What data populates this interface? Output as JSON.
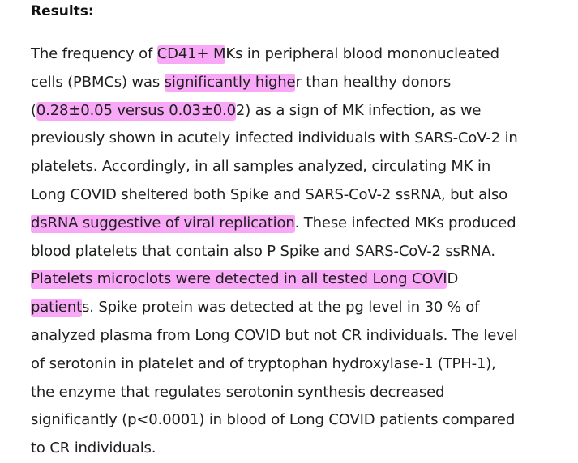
{
  "heading": "Results:",
  "highlight_color": "#f9a8f7",
  "lines": [
    [
      {
        "text": "The frequency of "
      },
      {
        "text": "CD41+ M",
        "hl": true
      },
      {
        "text": "Ks in peripheral blood mononucleated"
      }
    ],
    [
      {
        "text": "cells (PBMCs) was "
      },
      {
        "text": "significantly highe",
        "hl": true
      },
      {
        "text": "r than healthy donors"
      }
    ],
    [
      {
        "text": "("
      },
      {
        "text": "0.28±0.05 versus 0.03±0.0",
        "hl": true
      },
      {
        "text": "2) as a sign of MK infection, as we"
      }
    ],
    [
      {
        "text": "previously shown in acutely infected individuals with SARS-CoV-2 in"
      }
    ],
    [
      {
        "text": "platelets. Accordingly, in all samples analyzed, circulating MK in"
      }
    ],
    [
      {
        "text": "Long COVID sheltered both Spike and SARS-CoV-2 ssRNA, but also"
      }
    ],
    [
      {
        "text": "dsRNA suggestive of viral replication",
        "hl": true
      },
      {
        "text": ". These infected MKs produced"
      }
    ],
    [
      {
        "text": "blood platelets that contain also P Spike and SARS-CoV-2 ssRNA."
      }
    ],
    [
      {
        "text": "Platelets microclots were detected in all tested Long COVI",
        "hl": true
      },
      {
        "text": "D"
      }
    ],
    [
      {
        "text": "patient",
        "hl": true
      },
      {
        "text": "s. Spike protein was detected at the pg level in 30 % of"
      }
    ],
    [
      {
        "text": "analyzed plasma from Long COVID but not CR individuals. The level"
      }
    ],
    [
      {
        "text": "of serotonin in platelet and of tryptophan hydroxylase-1 (TPH-1),"
      }
    ],
    [
      {
        "text": "the enzyme that regulates serotonin synthesis decreased"
      }
    ],
    [
      {
        "text": "significantly (p<0.0001) in blood of Long COVID patients compared"
      }
    ],
    [
      {
        "text": "to CR individuals."
      }
    ]
  ]
}
